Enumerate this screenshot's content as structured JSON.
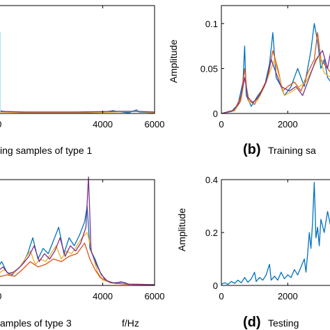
{
  "chart_data": [
    {
      "panel": "a",
      "type": "line",
      "caption_tail": "ing samples of type 1",
      "xlim": [
        -100,
        6000
      ],
      "ylim": [
        0,
        0.15
      ],
      "xticks": [
        0,
        4000,
        6000
      ],
      "xtick_labels": [
        "0",
        "4000",
        "6000"
      ],
      "yticks": [],
      "ylabel": "",
      "xlabel": "",
      "series": [
        {
          "color": "#0072BD",
          "values": [
            [
              -100,
              0.004
            ],
            [
              0,
              0.004
            ],
            [
              300,
              0.002
            ],
            [
              1000,
              0.0015
            ],
            [
              2000,
              0.0015
            ],
            [
              3000,
              0.001
            ],
            [
              4000,
              0.0015
            ],
            [
              4400,
              0.004
            ],
            [
              4500,
              0.003
            ],
            [
              5000,
              0.001
            ],
            [
              5300,
              0.005
            ],
            [
              5400,
              0.002
            ],
            [
              6000,
              0.001
            ]
          ]
        },
        {
          "color": "#EDB120",
          "values": [
            [
              -100,
              0.003
            ],
            [
              0,
              0.002
            ],
            [
              1000,
              0.001
            ],
            [
              3000,
              0.001
            ],
            [
              4500,
              0.002
            ],
            [
              5300,
              0.003
            ],
            [
              6000,
              0.001
            ]
          ]
        },
        {
          "color": "#7E2F8E",
          "values": [
            [
              -100,
              0.006
            ],
            [
              0,
              0.003
            ],
            [
              1000,
              0.002
            ],
            [
              3000,
              0.002
            ],
            [
              4500,
              0.003
            ],
            [
              5300,
              0.003
            ],
            [
              6000,
              0.002
            ]
          ]
        }
      ]
    },
    {
      "panel": "b",
      "type": "line",
      "caption_label": "(b)",
      "caption_tail": "Training sa",
      "xlim": [
        0,
        3400
      ],
      "ylim": [
        0,
        0.12
      ],
      "xticks": [
        0,
        2000
      ],
      "xtick_labels": [
        "0",
        "2000"
      ],
      "yticks": [
        0,
        0.05,
        0.1
      ],
      "ytick_labels": [
        "0",
        "0.05",
        "0.1"
      ],
      "ylabel": "Amplitude",
      "xlabel": "",
      "series": [
        {
          "color": "#0072BD",
          "values": [
            [
              0,
              0
            ],
            [
              300,
              0.002
            ],
            [
              500,
              0.01
            ],
            [
              650,
              0.035
            ],
            [
              700,
              0.075
            ],
            [
              750,
              0.02
            ],
            [
              900,
              0.008
            ],
            [
              1100,
              0.02
            ],
            [
              1300,
              0.03
            ],
            [
              1450,
              0.055
            ],
            [
              1550,
              0.09
            ],
            [
              1650,
              0.04
            ],
            [
              1800,
              0.03
            ],
            [
              1900,
              0.02
            ],
            [
              2100,
              0.03
            ],
            [
              2200,
              0.04
            ],
            [
              2300,
              0.05
            ],
            [
              2500,
              0.03
            ],
            [
              2600,
              0.05
            ],
            [
              2700,
              0.07
            ],
            [
              2800,
              0.1
            ],
            [
              2900,
              0.08
            ],
            [
              3000,
              0.05
            ],
            [
              3100,
              0.06
            ],
            [
              3200,
              0.04
            ],
            [
              3400,
              0.03
            ]
          ]
        },
        {
          "color": "#D95319",
          "values": [
            [
              0,
              0
            ],
            [
              400,
              0.004
            ],
            [
              600,
              0.02
            ],
            [
              700,
              0.05
            ],
            [
              800,
              0.015
            ],
            [
              1000,
              0.01
            ],
            [
              1200,
              0.025
            ],
            [
              1400,
              0.04
            ],
            [
              1550,
              0.07
            ],
            [
              1700,
              0.05
            ],
            [
              1850,
              0.025
            ],
            [
              2000,
              0.03
            ],
            [
              2200,
              0.035
            ],
            [
              2400,
              0.025
            ],
            [
              2600,
              0.045
            ],
            [
              2800,
              0.06
            ],
            [
              2900,
              0.09
            ],
            [
              3000,
              0.06
            ],
            [
              3200,
              0.05
            ],
            [
              3400,
              0.04
            ]
          ]
        },
        {
          "color": "#EDB120",
          "values": [
            [
              0,
              0
            ],
            [
              400,
              0.003
            ],
            [
              600,
              0.015
            ],
            [
              700,
              0.04
            ],
            [
              850,
              0.012
            ],
            [
              1100,
              0.015
            ],
            [
              1300,
              0.03
            ],
            [
              1500,
              0.05
            ],
            [
              1600,
              0.06
            ],
            [
              1750,
              0.04
            ],
            [
              1900,
              0.02
            ],
            [
              2150,
              0.025
            ],
            [
              2350,
              0.03
            ],
            [
              2550,
              0.035
            ],
            [
              2750,
              0.05
            ],
            [
              2950,
              0.065
            ],
            [
              3100,
              0.045
            ],
            [
              3300,
              0.04
            ],
            [
              3400,
              0.03
            ]
          ]
        },
        {
          "color": "#7E2F8E",
          "values": [
            [
              0,
              0
            ],
            [
              350,
              0.003
            ],
            [
              550,
              0.012
            ],
            [
              700,
              0.04
            ],
            [
              800,
              0.018
            ],
            [
              950,
              0.012
            ],
            [
              1150,
              0.02
            ],
            [
              1350,
              0.035
            ],
            [
              1500,
              0.06
            ],
            [
              1650,
              0.045
            ],
            [
              1800,
              0.03
            ],
            [
              2050,
              0.025
            ],
            [
              2250,
              0.03
            ],
            [
              2450,
              0.02
            ],
            [
              2650,
              0.04
            ],
            [
              2850,
              0.06
            ],
            [
              3050,
              0.07
            ],
            [
              3200,
              0.05
            ],
            [
              3350,
              0.08
            ],
            [
              3400,
              0.05
            ]
          ]
        }
      ]
    },
    {
      "panel": "c",
      "type": "line",
      "caption_tail": "amples of type 3",
      "xlim": [
        -100,
        6000
      ],
      "ylim": [
        0,
        0.4
      ],
      "xticks": [
        0,
        4000,
        6000
      ],
      "xtick_labels": [
        "0",
        "4000",
        "6000"
      ],
      "yticks": [],
      "ylabel": "",
      "xlabel": "f/Hz",
      "series": [
        {
          "color": "#0072BD",
          "values": [
            [
              -100,
              0.06
            ],
            [
              100,
              0.09
            ],
            [
              300,
              0.05
            ],
            [
              500,
              0.04
            ],
            [
              700,
              0.06
            ],
            [
              900,
              0.08
            ],
            [
              1100,
              0.12
            ],
            [
              1300,
              0.18
            ],
            [
              1500,
              0.1
            ],
            [
              1700,
              0.14
            ],
            [
              1900,
              0.12
            ],
            [
              2100,
              0.17
            ],
            [
              2300,
              0.22
            ],
            [
              2500,
              0.12
            ],
            [
              2700,
              0.18
            ],
            [
              2900,
              0.15
            ],
            [
              3100,
              0.19
            ],
            [
              3300,
              0.24
            ],
            [
              3400,
              0.3
            ],
            [
              3500,
              0.14
            ],
            [
              3700,
              0.1
            ],
            [
              3900,
              0.05
            ],
            [
              4100,
              0.02
            ],
            [
              4400,
              0.01
            ],
            [
              4800,
              0.012
            ],
            [
              5000,
              0.005
            ],
            [
              5500,
              0.004
            ],
            [
              6000,
              0.003
            ]
          ]
        },
        {
          "color": "#EDB120",
          "values": [
            [
              -100,
              0.04
            ],
            [
              200,
              0.06
            ],
            [
              400,
              0.04
            ],
            [
              600,
              0.05
            ],
            [
              800,
              0.07
            ],
            [
              1000,
              0.1
            ],
            [
              1200,
              0.13
            ],
            [
              1400,
              0.08
            ],
            [
              1600,
              0.1
            ],
            [
              1800,
              0.09
            ],
            [
              2000,
              0.12
            ],
            [
              2200,
              0.15
            ],
            [
              2400,
              0.1
            ],
            [
              2600,
              0.13
            ],
            [
              2800,
              0.12
            ],
            [
              3000,
              0.15
            ],
            [
              3200,
              0.18
            ],
            [
              3400,
              0.2
            ],
            [
              3600,
              0.12
            ],
            [
              3800,
              0.05
            ],
            [
              4000,
              0.02
            ],
            [
              4500,
              0.008
            ],
            [
              5000,
              0.004
            ],
            [
              6000,
              0.003
            ]
          ]
        },
        {
          "color": "#D95319",
          "values": [
            [
              -100,
              0.03
            ],
            [
              300,
              0.04
            ],
            [
              600,
              0.035
            ],
            [
              900,
              0.06
            ],
            [
              1200,
              0.09
            ],
            [
              1500,
              0.07
            ],
            [
              1800,
              0.08
            ],
            [
              2100,
              0.1
            ],
            [
              2400,
              0.09
            ],
            [
              2700,
              0.11
            ],
            [
              3000,
              0.12
            ],
            [
              3300,
              0.16
            ],
            [
              3500,
              0.1
            ],
            [
              3700,
              0.06
            ],
            [
              3900,
              0.03
            ],
            [
              4300,
              0.01
            ],
            [
              5000,
              0.004
            ],
            [
              6000,
              0.002
            ]
          ]
        },
        {
          "color": "#7E2F8E",
          "values": [
            [
              -100,
              0.05
            ],
            [
              150,
              0.07
            ],
            [
              350,
              0.045
            ],
            [
              550,
              0.05
            ],
            [
              750,
              0.065
            ],
            [
              950,
              0.085
            ],
            [
              1150,
              0.11
            ],
            [
              1350,
              0.15
            ],
            [
              1550,
              0.09
            ],
            [
              1750,
              0.12
            ],
            [
              1950,
              0.1
            ],
            [
              2150,
              0.13
            ],
            [
              2350,
              0.18
            ],
            [
              2550,
              0.11
            ],
            [
              2750,
              0.15
            ],
            [
              2950,
              0.13
            ],
            [
              3150,
              0.16
            ],
            [
              3350,
              0.22
            ],
            [
              3450,
              0.41
            ],
            [
              3550,
              0.13
            ],
            [
              3750,
              0.08
            ],
            [
              3950,
              0.04
            ],
            [
              4200,
              0.015
            ],
            [
              4500,
              0.008
            ],
            [
              4700,
              0.014
            ],
            [
              5000,
              0.005
            ],
            [
              6000,
              0.003
            ]
          ]
        }
      ]
    },
    {
      "panel": "d",
      "type": "line",
      "caption_label": "(d)",
      "caption_tail": "Testing",
      "xlim": [
        0,
        3400
      ],
      "ylim": [
        0,
        0.4
      ],
      "xticks": [
        0,
        2000
      ],
      "xtick_labels": [
        "0",
        "2000"
      ],
      "yticks": [
        0,
        0.2,
        0.4
      ],
      "ytick_labels": [
        "0",
        "0.2",
        "0.4"
      ],
      "ylabel": "Amplitude",
      "xlabel": "",
      "series": [
        {
          "color": "#0072BD",
          "values": [
            [
              0,
              0.005
            ],
            [
              100,
              0.01
            ],
            [
              200,
              0.004
            ],
            [
              300,
              0.015
            ],
            [
              400,
              0.008
            ],
            [
              500,
              0.02
            ],
            [
              600,
              0.01
            ],
            [
              700,
              0.03
            ],
            [
              800,
              0.012
            ],
            [
              900,
              0.025
            ],
            [
              1000,
              0.05
            ],
            [
              1050,
              0.015
            ],
            [
              1150,
              0.03
            ],
            [
              1250,
              0.02
            ],
            [
              1350,
              0.04
            ],
            [
              1450,
              0.08
            ],
            [
              1500,
              0.02
            ],
            [
              1600,
              0.035
            ],
            [
              1700,
              0.02
            ],
            [
              1800,
              0.05
            ],
            [
              1900,
              0.025
            ],
            [
              2000,
              0.04
            ],
            [
              2100,
              0.03
            ],
            [
              2200,
              0.06
            ],
            [
              2300,
              0.04
            ],
            [
              2400,
              0.07
            ],
            [
              2500,
              0.1
            ],
            [
              2550,
              0.05
            ],
            [
              2600,
              0.12
            ],
            [
              2650,
              0.2
            ],
            [
              2700,
              0.14
            ],
            [
              2750,
              0.24
            ],
            [
              2800,
              0.39
            ],
            [
              2850,
              0.18
            ],
            [
              2900,
              0.22
            ],
            [
              2950,
              0.15
            ],
            [
              3000,
              0.25
            ],
            [
              3100,
              0.2
            ],
            [
              3200,
              0.28
            ],
            [
              3300,
              0.22
            ],
            [
              3400,
              0.2
            ]
          ]
        }
      ]
    }
  ]
}
